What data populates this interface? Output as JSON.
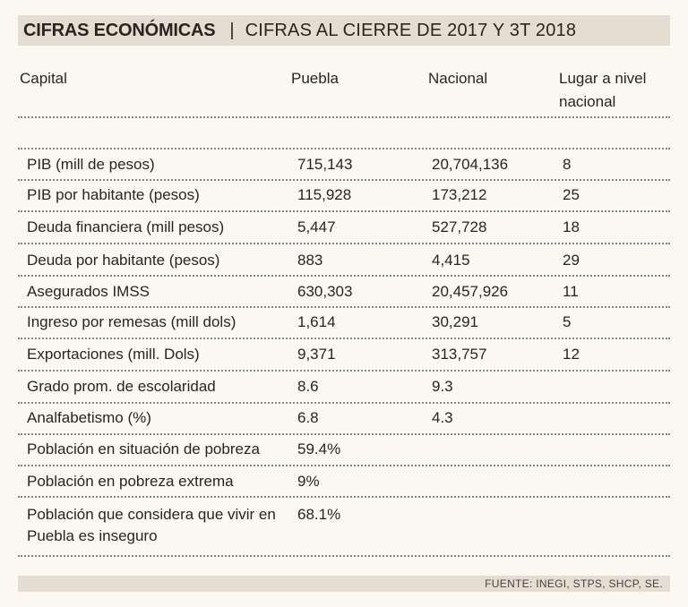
{
  "header": {
    "title": "CIFRAS ECONÓMICAS",
    "separator": "|",
    "subtitle": "CIFRAS AL CIERRE DE 2017 Y 3T 2018"
  },
  "columns": [
    "Capital",
    "Puebla",
    "Nacional",
    "Lugar a nivel nacional"
  ],
  "rows": [
    {
      "label": "PIB (mill de pesos)",
      "puebla": "715,143",
      "nacional": "20,704,136",
      "lugar": "8"
    },
    {
      "label": "PIB por habitante (pesos)",
      "puebla": "115,928",
      "nacional": "173,212",
      "lugar": "25"
    },
    {
      "label": "Deuda financiera (mill pesos)",
      "puebla": "5,447",
      "nacional": "527,728",
      "lugar": "18"
    },
    {
      "label": "Deuda por habitante (pesos)",
      "puebla": "883",
      "nacional": "4,415",
      "lugar": "29"
    },
    {
      "label": "Asegurados IMSS",
      "puebla": "630,303",
      "nacional": "20,457,926",
      "lugar": "11"
    },
    {
      "label": "Ingreso por remesas (mill dols)",
      "puebla": "1,614",
      "nacional": "30,291",
      "lugar": "5"
    },
    {
      "label": "Exportaciones (mill. Dols)",
      "puebla": "9,371",
      "nacional": "313,757",
      "lugar": "12"
    },
    {
      "label": "Grado prom. de escolaridad",
      "puebla": "8.6",
      "nacional": "9.3",
      "lugar": ""
    },
    {
      "label": "Analfabetismo (%)",
      "puebla": "6.8",
      "nacional": "4.3",
      "lugar": ""
    },
    {
      "label": "Población en situación de pobreza",
      "puebla": "59.4%",
      "nacional": "",
      "lugar": ""
    },
    {
      "label": "Población en pobreza extrema",
      "puebla": "9%",
      "nacional": "",
      "lugar": ""
    },
    {
      "label": "Población que considera que vivir en Puebla es inseguro",
      "puebla": "68.1%",
      "nacional": "",
      "lugar": ""
    }
  ],
  "footer": "FUENTE:  INEGI, STPS, SHCP, SE."
}
